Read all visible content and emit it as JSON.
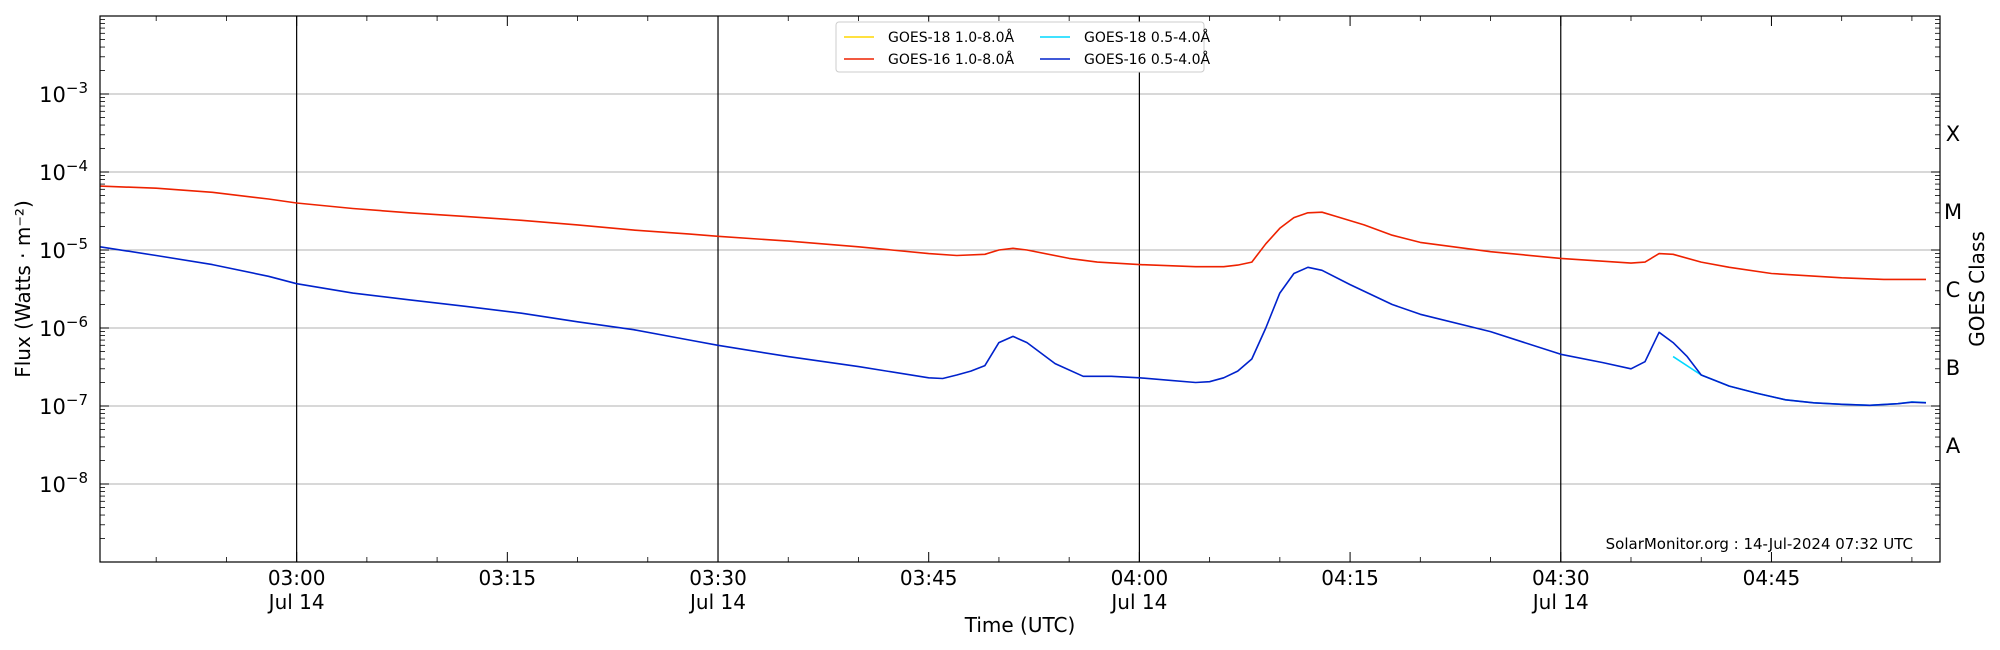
{
  "chart_data": {
    "type": "line",
    "ylabel": "Flux (Watts · m⁻²)",
    "xlabel": "Time (UTC)",
    "right_label": "GOES Class",
    "credit": "SolarMonitor.org : 14-Jul-2024 07:32 UTC",
    "y_scale": "log",
    "ylim": [
      1e-09,
      0.01
    ],
    "xlim": [
      "02:46",
      "04:57"
    ],
    "grid": "horizontal at decades",
    "legend_position": "upper-center",
    "y_ticks": [
      {
        "value": 1e-08,
        "exp": "−8"
      },
      {
        "value": 1e-07,
        "exp": "−7"
      },
      {
        "value": 1e-06,
        "exp": "−6"
      },
      {
        "value": 1e-05,
        "exp": "−5"
      },
      {
        "value": 0.0001,
        "exp": "−4"
      },
      {
        "value": 0.001,
        "exp": "−3"
      }
    ],
    "y_tick_base": "10",
    "x_ticks": [
      {
        "time": "03:00",
        "label": "03:00",
        "date": "Jul 14",
        "major": true
      },
      {
        "time": "03:15",
        "label": "03:15",
        "date": "",
        "major": false
      },
      {
        "time": "03:30",
        "label": "03:30",
        "date": "Jul 14",
        "major": true
      },
      {
        "time": "03:45",
        "label": "03:45",
        "date": "",
        "major": false
      },
      {
        "time": "04:00",
        "label": "04:00",
        "date": "Jul 14",
        "major": true
      },
      {
        "time": "04:15",
        "label": "04:15",
        "date": "",
        "major": false
      },
      {
        "time": "04:30",
        "label": "04:30",
        "date": "Jul 14",
        "major": true
      },
      {
        "time": "04:45",
        "label": "04:45",
        "date": "",
        "major": false
      }
    ],
    "goes_classes": [
      {
        "label": "A",
        "value": 3.16e-08
      },
      {
        "label": "B",
        "value": 3.16e-07
      },
      {
        "label": "C",
        "value": 3.16e-06
      },
      {
        "label": "M",
        "value": 3.16e-05
      },
      {
        "label": "X",
        "value": 0.000316
      }
    ],
    "series": [
      {
        "name": "GOES-18 1.0-8.0Å",
        "color": "#ffd700",
        "points": []
      },
      {
        "name": "GOES-16 1.0-8.0Å",
        "color": "#ee2200",
        "points": [
          [
            "02:46",
            6.6e-05
          ],
          [
            "02:50",
            6.2e-05
          ],
          [
            "02:54",
            5.5e-05
          ],
          [
            "02:58",
            4.5e-05
          ],
          [
            "03:00",
            4e-05
          ],
          [
            "03:04",
            3.4e-05
          ],
          [
            "03:08",
            3e-05
          ],
          [
            "03:12",
            2.7e-05
          ],
          [
            "03:16",
            2.4e-05
          ],
          [
            "03:20",
            2.1e-05
          ],
          [
            "03:24",
            1.8e-05
          ],
          [
            "03:28",
            1.6e-05
          ],
          [
            "03:30",
            1.5e-05
          ],
          [
            "03:35",
            1.3e-05
          ],
          [
            "03:40",
            1.1e-05
          ],
          [
            "03:45",
            9e-06
          ],
          [
            "03:47",
            8.5e-06
          ],
          [
            "03:49",
            8.8e-06
          ],
          [
            "03:50",
            1e-05
          ],
          [
            "03:51",
            1.05e-05
          ],
          [
            "03:52",
            1e-05
          ],
          [
            "03:55",
            7.8e-06
          ],
          [
            "03:57",
            7e-06
          ],
          [
            "04:00",
            6.5e-06
          ],
          [
            "04:04",
            6.1e-06
          ],
          [
            "04:06",
            6.1e-06
          ],
          [
            "04:07",
            6.4e-06
          ],
          [
            "04:08",
            7e-06
          ],
          [
            "04:09",
            1.2e-05
          ],
          [
            "04:10",
            1.9e-05
          ],
          [
            "04:11",
            2.6e-05
          ],
          [
            "04:12",
            3e-05
          ],
          [
            "04:13",
            3.05e-05
          ],
          [
            "04:14",
            2.7e-05
          ],
          [
            "04:16",
            2.1e-05
          ],
          [
            "04:18",
            1.55e-05
          ],
          [
            "04:20",
            1.25e-05
          ],
          [
            "04:25",
            9.5e-06
          ],
          [
            "04:30",
            7.8e-06
          ],
          [
            "04:35",
            6.8e-06
          ],
          [
            "04:36",
            7e-06
          ],
          [
            "04:37",
            9e-06
          ],
          [
            "04:38",
            8.8e-06
          ],
          [
            "04:40",
            7e-06
          ],
          [
            "04:42",
            6e-06
          ],
          [
            "04:45",
            5e-06
          ],
          [
            "04:50",
            4.4e-06
          ],
          [
            "04:53",
            4.2e-06
          ],
          [
            "04:56",
            4.2e-06
          ]
        ]
      },
      {
        "name": "GOES-18 0.5-4.0Å",
        "color": "#00d8ff",
        "points": [
          [
            "04:38",
            4.3e-07
          ],
          [
            "04:40",
            2.5e-07
          ],
          [
            "04:42",
            1.8e-07
          ],
          [
            "04:44",
            1.45e-07
          ],
          [
            "04:46",
            1.2e-07
          ],
          [
            "04:48",
            1.1e-07
          ],
          [
            "04:50",
            1.05e-07
          ],
          [
            "04:52",
            1.02e-07
          ],
          [
            "04:54",
            1.07e-07
          ],
          [
            "04:55",
            1.13e-07
          ],
          [
            "04:56",
            1.11e-07
          ]
        ]
      },
      {
        "name": "GOES-16 0.5-4.0Å",
        "color": "#0022cc",
        "points": [
          [
            "02:46",
            1.1e-05
          ],
          [
            "02:50",
            8.5e-06
          ],
          [
            "02:54",
            6.5e-06
          ],
          [
            "02:58",
            4.6e-06
          ],
          [
            "03:00",
            3.7e-06
          ],
          [
            "03:04",
            2.8e-06
          ],
          [
            "03:08",
            2.3e-06
          ],
          [
            "03:12",
            1.9e-06
          ],
          [
            "03:16",
            1.55e-06
          ],
          [
            "03:20",
            1.2e-06
          ],
          [
            "03:24",
            9.5e-07
          ],
          [
            "03:28",
            7e-07
          ],
          [
            "03:30",
            6e-07
          ],
          [
            "03:35",
            4.3e-07
          ],
          [
            "03:40",
            3.2e-07
          ],
          [
            "03:45",
            2.3e-07
          ],
          [
            "03:46",
            2.25e-07
          ],
          [
            "03:47",
            2.5e-07
          ],
          [
            "03:48",
            2.8e-07
          ],
          [
            "03:49",
            3.3e-07
          ],
          [
            "03:50",
            6.5e-07
          ],
          [
            "03:51",
            7.8e-07
          ],
          [
            "03:52",
            6.5e-07
          ],
          [
            "03:54",
            3.5e-07
          ],
          [
            "03:56",
            2.4e-07
          ],
          [
            "03:58",
            2.4e-07
          ],
          [
            "04:00",
            2.3e-07
          ],
          [
            "04:04",
            2e-07
          ],
          [
            "04:05",
            2.05e-07
          ],
          [
            "04:06",
            2.3e-07
          ],
          [
            "04:07",
            2.8e-07
          ],
          [
            "04:08",
            4e-07
          ],
          [
            "04:09",
            1e-06
          ],
          [
            "04:10",
            2.8e-06
          ],
          [
            "04:11",
            5e-06
          ],
          [
            "04:12",
            6e-06
          ],
          [
            "04:13",
            5.5e-06
          ],
          [
            "04:15",
            3.6e-06
          ],
          [
            "04:18",
            2e-06
          ],
          [
            "04:20",
            1.5e-06
          ],
          [
            "04:25",
            9e-07
          ],
          [
            "04:30",
            4.6e-07
          ],
          [
            "04:33",
            3.6e-07
          ],
          [
            "04:35",
            3e-07
          ],
          [
            "04:36",
            3.7e-07
          ],
          [
            "04:37",
            8.8e-07
          ],
          [
            "04:38",
            6.5e-07
          ],
          [
            "04:39",
            4.3e-07
          ],
          [
            "04:40",
            2.5e-07
          ],
          [
            "04:42",
            1.8e-07
          ],
          [
            "04:44",
            1.45e-07
          ],
          [
            "04:46",
            1.2e-07
          ],
          [
            "04:48",
            1.1e-07
          ],
          [
            "04:50",
            1.05e-07
          ],
          [
            "04:52",
            1.02e-07
          ],
          [
            "04:54",
            1.07e-07
          ],
          [
            "04:55",
            1.12e-07
          ],
          [
            "04:56",
            1.1e-07
          ]
        ]
      }
    ]
  }
}
